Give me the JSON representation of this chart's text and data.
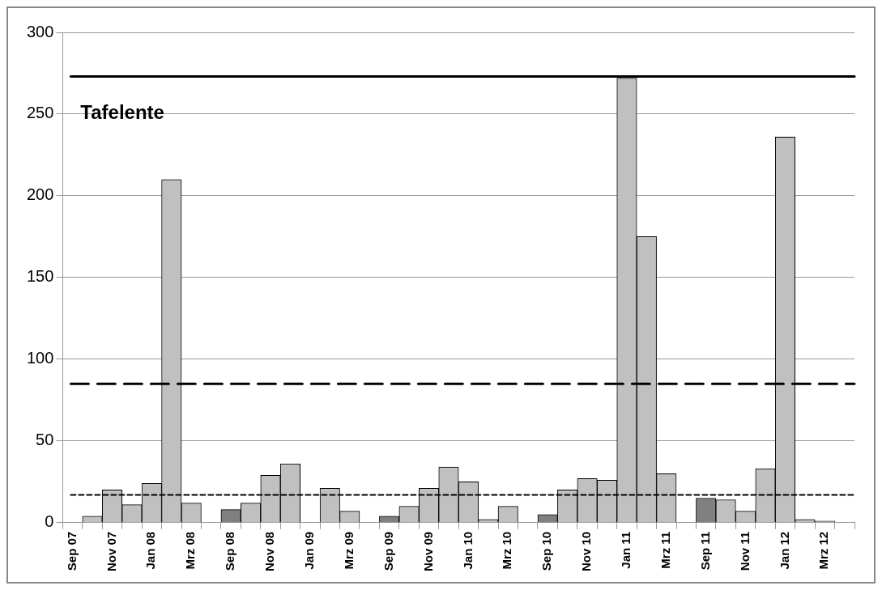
{
  "chart_data": {
    "type": "bar",
    "categories": [
      "Sep 07",
      null,
      "Nov 07",
      null,
      "Jan 08",
      null,
      "Mrz 08",
      null,
      "Sep 08",
      null,
      "Nov 08",
      null,
      "Jan 09",
      null,
      "Mrz 09",
      null,
      "Sep 09",
      null,
      "Nov 09",
      null,
      "Jan 10",
      null,
      "Mrz 10",
      null,
      "Sep 10",
      null,
      "Nov 10",
      null,
      "Jan 11",
      null,
      "Mrz 11",
      null,
      "Sep 11",
      null,
      "Nov 11",
      null,
      "Jan 12",
      null,
      "Mrz 12",
      null
    ],
    "values": [
      null,
      4,
      20,
      11,
      24,
      210,
      12,
      null,
      8,
      12,
      29,
      36,
      null,
      21,
      7,
      null,
      4,
      10,
      21,
      34,
      25,
      2,
      10,
      null,
      5,
      20,
      27,
      26,
      272,
      175,
      30,
      null,
      15,
      14,
      7,
      33,
      236,
      2,
      1,
      null
    ],
    "colors": [
      "#c0c0c0",
      "#c0c0c0",
      "#c0c0c0",
      "#c0c0c0",
      "#c0c0c0",
      "#c0c0c0",
      "#c0c0c0",
      "#c0c0c0",
      "#808080",
      "#c0c0c0",
      "#c0c0c0",
      "#c0c0c0",
      "#c0c0c0",
      "#c0c0c0",
      "#c0c0c0",
      "#c0c0c0",
      "#808080",
      "#c0c0c0",
      "#c0c0c0",
      "#c0c0c0",
      "#c0c0c0",
      "#c0c0c0",
      "#c0c0c0",
      "#c0c0c0",
      "#808080",
      "#c0c0c0",
      "#c0c0c0",
      "#c0c0c0",
      "#c0c0c0",
      "#c0c0c0",
      "#c0c0c0",
      "#c0c0c0",
      "#808080",
      "#c0c0c0",
      "#c0c0c0",
      "#c0c0c0",
      "#c0c0c0",
      "#c0c0c0",
      "#c0c0c0",
      "#c0c0c0"
    ],
    "ylim": [
      0,
      300
    ],
    "yticks": [
      0,
      50,
      100,
      150,
      200,
      250,
      300
    ],
    "grid": "y",
    "legend": false,
    "ref_lines": [
      {
        "axis": "y",
        "value": 273,
        "color": "#000000",
        "line_style": "solid"
      },
      {
        "axis": "y",
        "value": 85,
        "color": "#000000",
        "line_style": "dashed"
      },
      {
        "axis": "y",
        "value": 17,
        "color": "#000000",
        "line_style": "dotted"
      }
    ],
    "annotations": [
      "Tafelente"
    ]
  }
}
